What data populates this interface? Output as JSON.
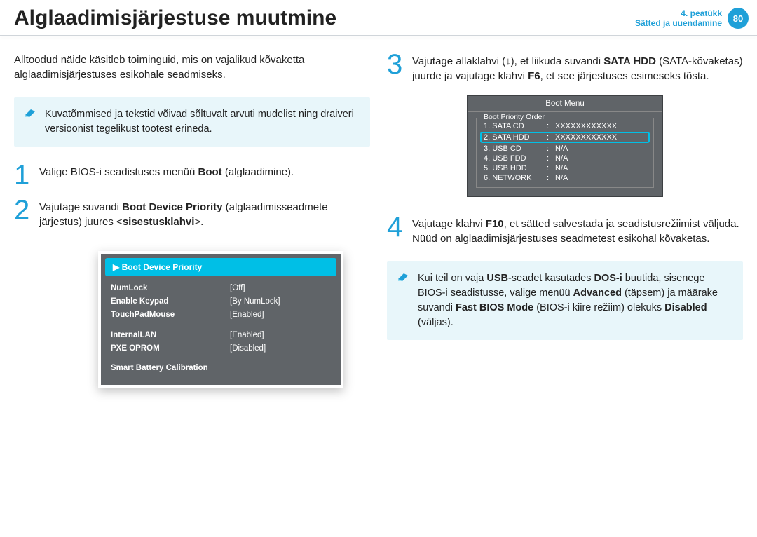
{
  "header": {
    "title": "Alglaadimisjärjestuse muutmine",
    "chapter": "4. peatükk",
    "section": "Sätted ja uuendamine",
    "page": "80"
  },
  "left": {
    "intro": "Alltoodud näide käsitleb toiminguid, mis on vajalikud kõvaketta alglaadimisjärjestuses esikohale seadmiseks.",
    "note": "Kuvatõmmised ja tekstid võivad sõltuvalt arvuti mudelist ning draiveri versioonist tegelikust tootest erineda.",
    "step1_pre": "Valige BIOS-i seadistuses menüü ",
    "step1_bold": "Boot",
    "step1_post": " (alglaadimine).",
    "step2_pre": "Vajutage suvandi ",
    "step2_bold": "Boot Device Priority",
    "step2_mid": " (alglaadimisseadmete järjestus) juures <",
    "step2_bold2": "sisestusklahvi",
    "step2_post": ">.",
    "bios": {
      "hi": "▶ Boot Device Priority",
      "rows1": [
        {
          "k": "NumLock",
          "v": "Off"
        },
        {
          "k": "Enable Keypad",
          "v": "By NumLock"
        },
        {
          "k": "TouchPadMouse",
          "v": "Enabled"
        }
      ],
      "rows2": [
        {
          "k": "InternalLAN",
          "v": "Enabled"
        },
        {
          "k": "PXE OPROM",
          "v": "Disabled"
        }
      ],
      "last": "Smart Battery Calibration"
    }
  },
  "right": {
    "step3_pre": "Vajutage allaklahvi (↓), et liikuda suvandi ",
    "step3_bold": "SATA HDD",
    "step3_mid": " (SATA-kõvaketas) juurde ja vajutage klahvi ",
    "step3_bold2": "F6",
    "step3_post": ", et see järjestuses esimeseks tõsta.",
    "bootmenu": {
      "title": "Boot Menu",
      "legend": "Boot Priority Order",
      "rows": [
        {
          "label": "1. SATA CD",
          "val": "XXXXXXXXXXXX",
          "hi": false
        },
        {
          "label": "2. SATA HDD",
          "val": "XXXXXXXXXXXX",
          "hi": true
        },
        {
          "label": "3. USB CD",
          "val": "N/A",
          "hi": false
        },
        {
          "label": "4. USB FDD",
          "val": "N/A",
          "hi": false
        },
        {
          "label": "5. USB HDD",
          "val": "N/A",
          "hi": false
        },
        {
          "label": "6. NETWORK",
          "val": "N/A",
          "hi": false
        }
      ]
    },
    "step4_pre": "Vajutage klahvi ",
    "step4_bold": "F10",
    "step4_post": ", et sätted salvestada ja seadistusrežiimist väljuda. Nüüd on alglaadimisjärjestuses seadmetest esikohal kõvaketas.",
    "note2_pre": "Kui teil on vaja ",
    "note2_b1": "USB",
    "note2_m1": "-seadet kasutades  ",
    "note2_b2": "DOS-i",
    "note2_m2": " buutida, sisenege BIOS-i seadistusse, valige menüü ",
    "note2_b3": "Advanced",
    "note2_m3": " (täpsem) ja määrake suvandi ",
    "note2_b4": "Fast BIOS Mode",
    "note2_m4": " (BIOS-i kiire režiim) olekuks ",
    "note2_b5": "Disabled",
    "note2_m5": " (väljas)."
  }
}
